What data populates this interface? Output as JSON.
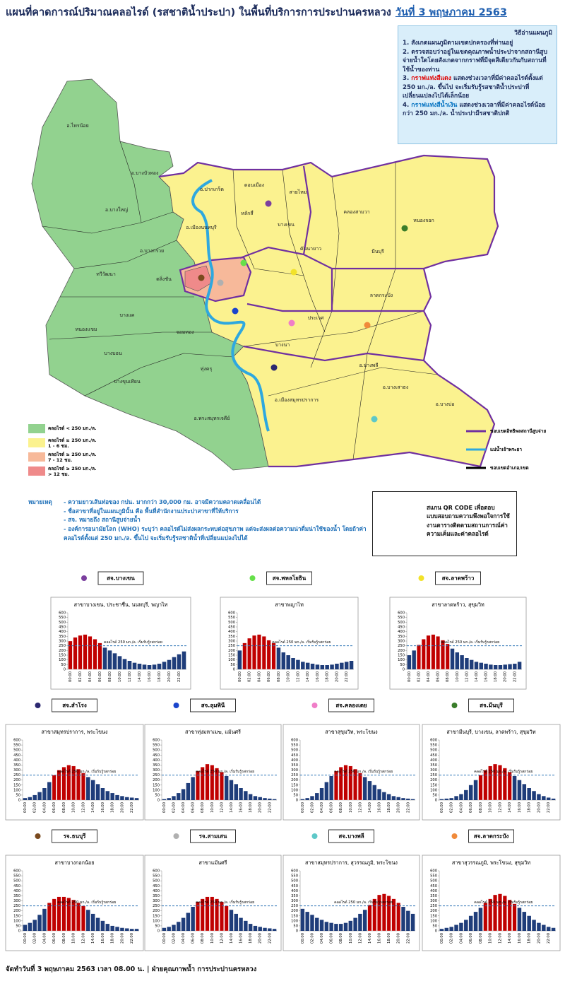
{
  "header": {
    "title": "แผนที่คาดการณ์ปริมาณคลอไรด์ (รสชาติน้ำประปา) ในพื้นที่บริการการประปานครหลวง",
    "date": "วันที่ 3 พฤษภาคม 2563"
  },
  "instructions": {
    "heading": "วิธีอ่านแผนภูมิ",
    "items": [
      {
        "text": "1. สังเกตแผนภูมิตามเขตปกครองที่ท่านอยู่"
      },
      {
        "text": "2. ตรวจสอบว่าอยู่ในเขตคุณภาพน้ำประปาจากสถานีสูบจ่ายน้ำใดโดยสังเกตจากกราฟที่มีจุดสีเดียวกันกับสถานที่ใช้น้ำของท่าน"
      },
      {
        "lead": "3.",
        "highlight": "กราฟแท่งสีแดง",
        "text": "แสดงช่วงเวลาที่มีค่าคลอไรด์ตั้งแต่ 250 มก./ล. ขึ้นไป จะเริ่มรับรู้รสชาติน้ำประปาที่เปลี่ยนแปลงไปได้เล็กน้อย"
      },
      {
        "lead": "4.",
        "highlight": "กราฟแท่งสีน้ำเงิน",
        "text": "แสดงช่วงเวลาที่มีค่าคลอไรด์น้อยกว่า 250 มก./ล. น้ำประปามีรสชาติปกติ"
      }
    ]
  },
  "map": {
    "districts": [
      "อ.ไทรน้อย",
      "อ.บางบัวทอง",
      "อ.บางใหญ่",
      "อ.บางกรวย",
      "ทวีวัฒนา",
      "ตลิ่งชัน",
      "บางแค",
      "หนองแขม",
      "บางบอน",
      "บางขุนเทียน",
      "ทุ่งครุ",
      "อ.พระสมุทรเจดีย์",
      "อ.ปากเกร็ด",
      "ดอนเมือง",
      "สายไหม",
      "หลักสี่",
      "บางเขน",
      "คลองสามวา",
      "หนองจอก",
      "มีนบุรี",
      "ลาดกระบัง",
      "ประเวศ",
      "บางนา",
      "อ.บางพลี",
      "อ.บางเสาธง",
      "อ.บางบ่อ",
      "อ.เมืองสมุทรปราการ",
      "อ.เมืองนนทบุรี",
      "คันนายาว",
      "จอมทอง"
    ],
    "legend": [
      {
        "label": "คลอไรด์ < 250 มก./ล.",
        "color": "#92d28f"
      },
      {
        "label": "คลอไรด์ ≥ 250 มก./ล.",
        "duration": "1 - 6 ชม.",
        "color": "#fbf28f"
      },
      {
        "label": "คลอไรด์ ≥ 250 มก./ล.",
        "duration": "7 - 12 ชม.",
        "color": "#f7b99a"
      },
      {
        "label": "คลอไรด์ ≥ 250 มก./ล.",
        "duration": "> 12 ชม.",
        "color": "#ef8a8a"
      }
    ],
    "lines": [
      {
        "label": "ขอบเขตอิทธิพลสถานีสูบจ่าย",
        "color": "#7030a0"
      },
      {
        "label": "แม่น้ำเจ้าพระยา",
        "color": "#2ea8df"
      },
      {
        "label": "ขอบเขตอำเภอ/เขต",
        "color": "#000000"
      }
    ]
  },
  "notes": {
    "heading": "หมายเหตุ",
    "items": [
      "- ความยาวเส้นท่อของ กปน. มากกว่า 30,000 กม. อาจมีความคลาดเคลื่อนได้",
      "- ชื่อสาขาที่อยู่ในแผนภูมินั้น คือ พื้นที่สำนักงานประปาสาขาที่ให้บริการ",
      "- สจ. หมายถึง สถานีสูบจ่ายน้ำ",
      "- องค์การอนามัยโลก (WHO) ระบุว่า คลอไรด์ไม่ส่งผลกระทบต่อสุขภาพ แต่จะส่งผลต่อความน่าดื่มน่าใช้ของน้ำ โดยถ้าค่าคลอไรด์ตั้งแต่ 250 มก./ล. ขึ้นไป จะเริ่มรับรู้รสชาติน้ำที่เปลี่ยนแปลงไปได้"
    ]
  },
  "qr": {
    "text": "สแกน QR CODE เพื่อตอบแบบสอบถามความพึงพอใจการใช้งานตารางติดตามสถานการณ์ค่าความเค็มและค่าคลอไรด์"
  },
  "footer": "จัดทำวันที่ 3 พฤษภาคม 2563 เวลา 08.00 น. | ฝ่ายคุณภาพน้ำ การประปานครหลวง",
  "chart_data": [
    {
      "type": "bar",
      "station": "สจ.บางเขน",
      "marker_color": "#7b3f9e",
      "title": "สาขาบางเขน, ประชาชื่น, นนทบุรี, พญาไท",
      "categories": [
        "00:00",
        null,
        "02:00",
        null,
        "04:00",
        null,
        "06:00",
        null,
        "08:00",
        null,
        "10:00",
        null,
        "12:00",
        null,
        "14:00",
        null,
        "16:00",
        null,
        "18:00",
        null,
        "20:00",
        null,
        "22:00",
        null
      ],
      "values": [
        300,
        340,
        360,
        370,
        350,
        320,
        280,
        230,
        200,
        170,
        140,
        110,
        90,
        70,
        60,
        50,
        45,
        50,
        60,
        80,
        100,
        130,
        160,
        190
      ],
      "color": "#1f3d7a",
      "highlight_color": "#c00000",
      "threshold": 250,
      "threshold_label": "คลอไรด์ 250 มก./ล. เริ่มรับรู้รสกร่อย",
      "ylim": [
        0,
        600
      ],
      "yticks": [
        0,
        50,
        100,
        150,
        200,
        250,
        300,
        350,
        400,
        450,
        500,
        550,
        600
      ]
    },
    {
      "type": "bar",
      "station": "สจ.พหลโยธิน",
      "marker_color": "#66e04a",
      "title": "สาขาพญาไท",
      "categories": [
        "00:00",
        null,
        "02:00",
        null,
        "04:00",
        null,
        "06:00",
        null,
        "08:00",
        null,
        "10:00",
        null,
        "12:00",
        null,
        "14:00",
        null,
        "16:00",
        null,
        "18:00",
        null,
        "20:00",
        null,
        "22:00",
        null
      ],
      "values": [
        200,
        280,
        330,
        360,
        370,
        350,
        310,
        280,
        230,
        180,
        150,
        120,
        100,
        80,
        70,
        60,
        50,
        45,
        45,
        50,
        60,
        70,
        80,
        90
      ],
      "color": "#1f3d7a",
      "highlight_color": "#c00000",
      "threshold": 250,
      "threshold_label": "คลอไรด์ 250 มก./ล. เริ่มรับรู้รสกร่อย",
      "ylim": [
        0,
        600
      ],
      "yticks": [
        0,
        50,
        100,
        150,
        200,
        250,
        300,
        350,
        400,
        450,
        500,
        550,
        600
      ]
    },
    {
      "type": "bar",
      "station": "สจ.ลาดพร้าว",
      "marker_color": "#f2e22a",
      "title": "สาขาลาดพร้าว, สุขุมวิท",
      "categories": [
        "00:00",
        null,
        "02:00",
        null,
        "04:00",
        null,
        "06:00",
        null,
        "08:00",
        null,
        "10:00",
        null,
        "12:00",
        null,
        "14:00",
        null,
        "16:00",
        null,
        "18:00",
        null,
        "20:00",
        null,
        "22:00",
        null
      ],
      "values": [
        150,
        200,
        260,
        320,
        360,
        370,
        350,
        310,
        270,
        220,
        180,
        150,
        120,
        100,
        80,
        70,
        60,
        50,
        45,
        45,
        50,
        55,
        60,
        80
      ],
      "color": "#1f3d7a",
      "highlight_color": "#c00000",
      "threshold": 250,
      "threshold_label": "คลอไรด์ 250 มก./ล. เริ่มรับรู้รสกร่อย",
      "ylim": [
        0,
        600
      ],
      "yticks": [
        0,
        50,
        100,
        150,
        200,
        250,
        300,
        350,
        400,
        450,
        500,
        550,
        600
      ]
    },
    {
      "type": "bar",
      "station": "สจ.สำโรง",
      "marker_color": "#2b2870",
      "title": "สาขาสมุทรปราการ, พระโขนง",
      "categories": [
        "00:00",
        null,
        "02:00",
        null,
        "04:00",
        null,
        "06:00",
        null,
        "08:00",
        null,
        "10:00",
        null,
        "12:00",
        null,
        "14:00",
        null,
        "16:00",
        null,
        "18:00",
        null,
        "20:00",
        null,
        "22:00",
        null
      ],
      "values": [
        20,
        30,
        50,
        80,
        120,
        180,
        250,
        300,
        330,
        350,
        340,
        310,
        270,
        230,
        200,
        160,
        120,
        90,
        70,
        50,
        40,
        30,
        25,
        20
      ],
      "color": "#1f3d7a",
      "highlight_color": "#c00000",
      "threshold": 250,
      "threshold_label": "คลอไรด์ 250 มก./ล. เริ่มรับรู้รสกร่อย",
      "ylim": [
        0,
        600
      ],
      "yticks": [
        0,
        50,
        100,
        150,
        200,
        250,
        300,
        350,
        400,
        450,
        500,
        550,
        600
      ]
    },
    {
      "type": "bar",
      "station": "สจ.ลุมพินี",
      "marker_color": "#1a44cc",
      "title": "สาขาทุ่งมหาเมฆ, แม้นศรี",
      "categories": [
        "00:00",
        null,
        "02:00",
        null,
        "04:00",
        null,
        "06:00",
        null,
        "08:00",
        null,
        "10:00",
        null,
        "12:00",
        null,
        "14:00",
        null,
        "16:00",
        null,
        "18:00",
        null,
        "20:00",
        null,
        "22:00",
        null
      ],
      "values": [
        10,
        20,
        40,
        70,
        110,
        170,
        230,
        290,
        330,
        360,
        350,
        320,
        280,
        240,
        200,
        160,
        120,
        90,
        60,
        40,
        30,
        20,
        15,
        10
      ],
      "color": "#1f3d7a",
      "highlight_color": "#c00000",
      "threshold": 250,
      "threshold_label": "คลอไรด์ 250 มก./ล. เริ่มรับรู้รสกร่อย",
      "ylim": [
        0,
        600
      ],
      "yticks": [
        0,
        50,
        100,
        150,
        200,
        250,
        300,
        350,
        400,
        450,
        500,
        550,
        600
      ]
    },
    {
      "type": "bar",
      "station": "สจ.คลองเตย",
      "marker_color": "#f07ec8",
      "title": "สาขาสุขุมวิท, พระโขนง",
      "categories": [
        "00:00",
        null,
        "02:00",
        null,
        "04:00",
        null,
        "06:00",
        null,
        "08:00",
        null,
        "10:00",
        null,
        "12:00",
        null,
        "14:00",
        null,
        "16:00",
        null,
        "18:00",
        null,
        "20:00",
        null,
        "22:00",
        null
      ],
      "values": [
        10,
        20,
        40,
        70,
        120,
        180,
        240,
        290,
        330,
        350,
        340,
        310,
        270,
        230,
        190,
        150,
        110,
        80,
        60,
        40,
        30,
        20,
        15,
        10
      ],
      "color": "#1f3d7a",
      "highlight_color": "#c00000",
      "threshold": 250,
      "threshold_label": "คลอไรด์ 250 มก./ล. เริ่มรับรู้รสกร่อย",
      "ylim": [
        0,
        600
      ],
      "yticks": [
        0,
        50,
        100,
        150,
        200,
        250,
        300,
        350,
        400,
        450,
        500,
        550,
        600
      ]
    },
    {
      "type": "bar",
      "station": "สจ.มีนบุรี",
      "marker_color": "#3a7d2a",
      "title": "สาขามีนบุรี, บางเขน, ลาดพร้าว, สุขุมวิท",
      "categories": [
        "00:00",
        null,
        "02:00",
        null,
        "04:00",
        null,
        "06:00",
        null,
        "08:00",
        null,
        "10:00",
        null,
        "12:00",
        null,
        "14:00",
        null,
        "16:00",
        null,
        "18:00",
        null,
        "20:00",
        null,
        "22:00",
        null
      ],
      "values": [
        10,
        15,
        20,
        40,
        60,
        100,
        150,
        200,
        250,
        300,
        340,
        360,
        350,
        320,
        280,
        240,
        200,
        160,
        120,
        90,
        60,
        40,
        25,
        15
      ],
      "color": "#1f3d7a",
      "highlight_color": "#c00000",
      "threshold": 250,
      "threshold_label": "คลอไรด์ 250 มก./ล. เริ่มรับรู้รสกร่อย",
      "ylim": [
        0,
        600
      ],
      "yticks": [
        0,
        50,
        100,
        150,
        200,
        250,
        300,
        350,
        400,
        450,
        500,
        550,
        600
      ]
    },
    {
      "type": "bar",
      "station": "รจ.ธนบุรี",
      "marker_color": "#7a4a1e",
      "title": "สาขาบางกอกน้อย",
      "categories": [
        "00:00",
        null,
        "02:00",
        null,
        "04:00",
        null,
        "06:00",
        null,
        "08:00",
        null,
        "10:00",
        null,
        "12:00",
        null,
        "14:00",
        null,
        "16:00",
        null,
        "18:00",
        null,
        "20:00",
        null,
        "22:00",
        null
      ],
      "values": [
        60,
        80,
        110,
        160,
        220,
        280,
        320,
        340,
        340,
        330,
        310,
        280,
        250,
        210,
        170,
        130,
        100,
        70,
        50,
        40,
        30,
        25,
        20,
        20
      ],
      "color": "#1f3d7a",
      "highlight_color": "#c00000",
      "threshold": 250,
      "threshold_label": "คลอไรด์ 250 มก./ล. เริ่มรับรู้รสกร่อย",
      "ylim": [
        0,
        600
      ],
      "yticks": [
        0,
        50,
        100,
        150,
        200,
        250,
        300,
        350,
        400,
        450,
        500,
        550,
        600
      ]
    },
    {
      "type": "bar",
      "station": "รจ.สามเสน",
      "marker_color": "#b0b0b0",
      "title": "สาขาแม้นศรี",
      "categories": [
        "00:00",
        null,
        "02:00",
        null,
        "04:00",
        null,
        "06:00",
        null,
        "08:00",
        null,
        "10:00",
        null,
        "12:00",
        null,
        "14:00",
        null,
        "16:00",
        null,
        "18:00",
        null,
        "20:00",
        null,
        "22:00",
        null
      ],
      "values": [
        30,
        40,
        60,
        90,
        130,
        180,
        240,
        290,
        320,
        340,
        340,
        320,
        290,
        250,
        210,
        170,
        130,
        100,
        70,
        50,
        40,
        30,
        25,
        20
      ],
      "color": "#1f3d7a",
      "highlight_color": "#c00000",
      "threshold": 250,
      "threshold_label": "คลอไรด์ 250 มก./ล. เริ่มรับรู้รสกร่อย",
      "ylim": [
        0,
        600
      ],
      "yticks": [
        0,
        50,
        100,
        150,
        200,
        250,
        300,
        350,
        400,
        450,
        500,
        550,
        600
      ]
    },
    {
      "type": "bar",
      "station": "สจ.บางพลี",
      "marker_color": "#5ec8c8",
      "title": "สาขาสมุทรปราการ, สุวรรณภูมิ, พระโขนง",
      "categories": [
        "00:00",
        null,
        "02:00",
        null,
        "04:00",
        null,
        "06:00",
        null,
        "08:00",
        null,
        "10:00",
        null,
        "12:00",
        null,
        "14:00",
        null,
        "16:00",
        null,
        "18:00",
        null,
        "20:00",
        null,
        "22:00",
        null
      ],
      "values": [
        220,
        190,
        160,
        130,
        110,
        90,
        80,
        70,
        70,
        80,
        100,
        130,
        170,
        210,
        260,
        320,
        360,
        370,
        350,
        320,
        280,
        240,
        200,
        170
      ],
      "color": "#1f3d7a",
      "highlight_color": "#c00000",
      "threshold": 250,
      "threshold_label": "คลอไรด์ 250 มก./ล. เริ่มรับรู้รสกร่อย",
      "ylim": [
        0,
        600
      ],
      "yticks": [
        0,
        50,
        100,
        150,
        200,
        250,
        300,
        350,
        400,
        450,
        500,
        550,
        600
      ]
    },
    {
      "type": "bar",
      "station": "สจ.ลาดกระบัง",
      "marker_color": "#f08a3a",
      "title": "สาขาสุวรรณภูมิ, พระโขนง, สุขุมวิท",
      "categories": [
        "00:00",
        null,
        "02:00",
        null,
        "04:00",
        null,
        "06:00",
        null,
        "08:00",
        null,
        "10:00",
        null,
        "12:00",
        null,
        "14:00",
        null,
        "16:00",
        null,
        "18:00",
        null,
        "20:00",
        null,
        "22:00",
        null
      ],
      "values": [
        20,
        30,
        40,
        60,
        80,
        110,
        150,
        190,
        230,
        280,
        320,
        360,
        370,
        350,
        310,
        270,
        230,
        190,
        150,
        110,
        80,
        60,
        40,
        30
      ],
      "color": "#1f3d7a",
      "highlight_color": "#c00000",
      "threshold": 250,
      "threshold_label": "คลอไรด์ 250 มก./ล. เริ่มรับรู้รสกร่อย",
      "ylim": [
        0,
        600
      ],
      "yticks": [
        0,
        50,
        100,
        150,
        200,
        250,
        300,
        350,
        400,
        450,
        500,
        550,
        600
      ]
    }
  ]
}
